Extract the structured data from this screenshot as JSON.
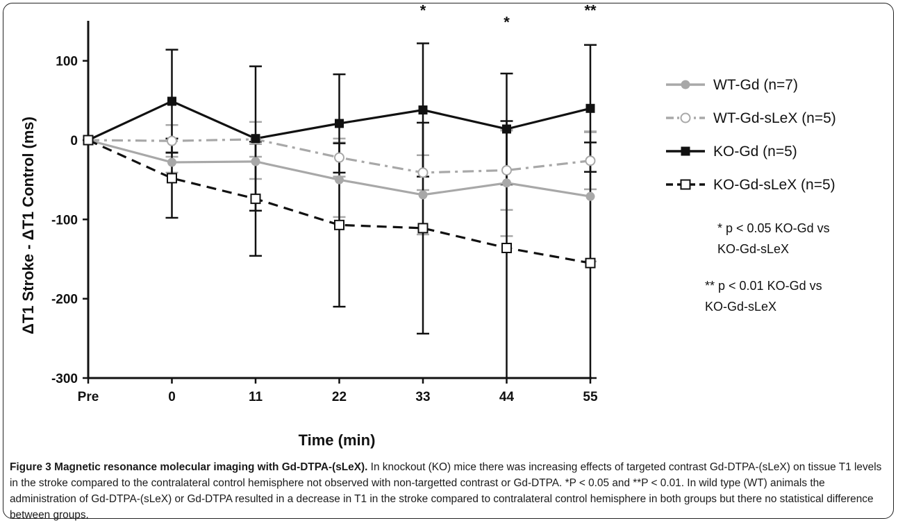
{
  "chart_data": {
    "type": "line",
    "ylabel": "ΔT1 Stroke - ΔT1 Control (ms)",
    "xlabel": "Time (min)",
    "categories": [
      "Pre",
      "0",
      "11",
      "22",
      "33",
      "44",
      "55"
    ],
    "ylim": [
      -300,
      150
    ],
    "yticks": [
      100,
      0,
      -100,
      -200,
      -300
    ],
    "grid": false,
    "legend_position": "right",
    "series": [
      {
        "name": "WT-Gd (n=7)",
        "marker": "filled-circle",
        "line": "solid",
        "color": "#a8a8a8",
        "values": [
          0,
          -28,
          -27,
          -50,
          -69,
          -54,
          -71
        ],
        "err_upper": [
          null,
          13,
          22,
          47,
          50,
          67,
          82
        ],
        "err_lower": [
          null,
          13,
          22,
          47,
          50,
          67,
          82
        ]
      },
      {
        "name": "WT-Gd-sLeX (n=5)",
        "marker": "open-circle",
        "line": "dash-dot",
        "color": "#a8a8a8",
        "values": [
          0,
          -1,
          1,
          -22,
          -41,
          -38,
          -26
        ],
        "err_upper": [
          null,
          20,
          22,
          24,
          22,
          50,
          36
        ],
        "err_lower": [
          null,
          20,
          22,
          24,
          22,
          50,
          36
        ]
      },
      {
        "name": "KO-Gd (n=5)",
        "marker": "filled-square",
        "line": "solid",
        "color": "#111111",
        "values": [
          0,
          49,
          2,
          21,
          38,
          14,
          40
        ],
        "err_upper": [
          null,
          65,
          91,
          62,
          84,
          70,
          80
        ],
        "err_lower": [
          null,
          65,
          91,
          62,
          84,
          70,
          80
        ]
      },
      {
        "name": "KO-Gd-sLeX (n=5)",
        "marker": "open-square",
        "line": "dash",
        "color": "#111111",
        "values": [
          0,
          -48,
          -74,
          -107,
          -111,
          -136,
          -155
        ],
        "err_upper": [
          null,
          50,
          72,
          103,
          133,
          160,
          152
        ],
        "err_lower": [
          null,
          50,
          72,
          103,
          133,
          165,
          152
        ]
      }
    ],
    "annotations": [
      {
        "category": "33",
        "text": "*",
        "y": 150
      },
      {
        "category": "44",
        "text": "*",
        "y": 135
      },
      {
        "category": "55",
        "text": "**",
        "y": 150
      }
    ],
    "notes": [
      "* p < 0.05 KO-Gd vs KO-Gd-sLeX",
      "** p < 0.01 KO-Gd vs KO-Gd-sLeX"
    ]
  },
  "caption": {
    "title": "Figure 3 Magnetic resonance molecular imaging with Gd-DTPA-(sLeX).",
    "body": " In knockout (KO) mice there was increasing effects of targeted contrast Gd-DTPA-(sLeX) on tissue T1 levels in the stroke compared to the contralateral control hemisphere not observed with non-targetted contrast or Gd-DTPA. *P < 0.05 and **P < 0.01. In wild type (WT) animals the administration of Gd-DTPA-(sLeX) or Gd-DTPA resulted in a decrease in T1 in the stroke compared to contralateral control hemisphere in both groups but there no statistical difference between groups."
  }
}
